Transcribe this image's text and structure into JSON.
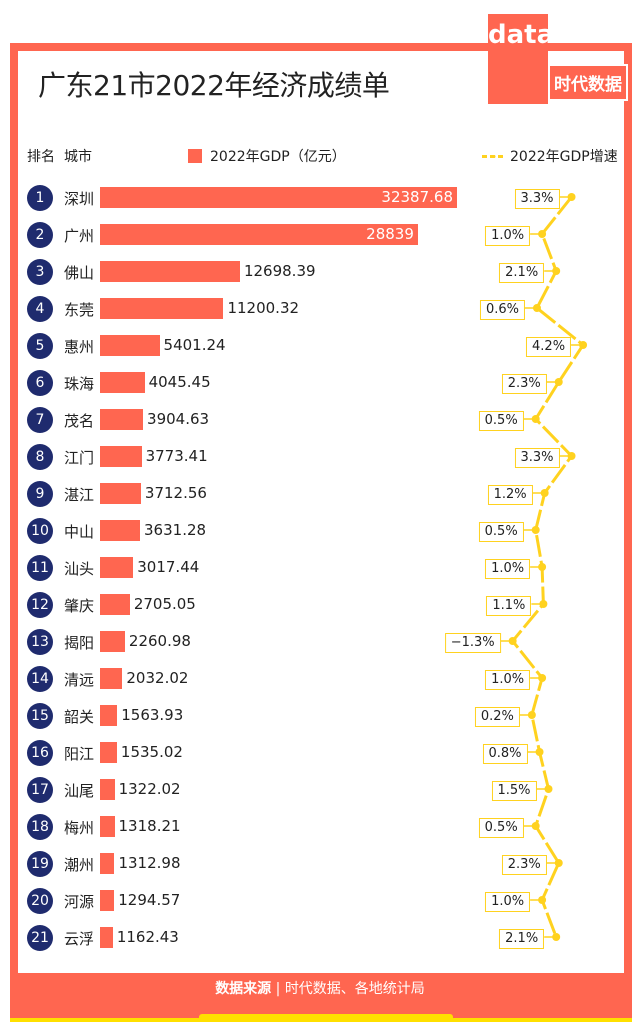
{
  "title": "广东21市2022年经济成绩单",
  "logo": {
    "word": "data",
    "cn": "时代数据"
  },
  "headers": {
    "rank": "排名",
    "city": "城市"
  },
  "footer": {
    "label": "数据来源",
    "sep": "|",
    "source": "时代数据、各地统计局"
  },
  "colors": {
    "bar": "#FF6650",
    "line": "#FFD21F",
    "rank": "#1F2B6E"
  },
  "chart_data": {
    "type": "bar",
    "title": "广东21市2022年经济成绩单",
    "legend": [
      "2022年GDP（亿元）",
      "2022年GDP增速"
    ],
    "categories": [
      "深圳",
      "广州",
      "佛山",
      "东莞",
      "惠州",
      "珠海",
      "茂名",
      "江门",
      "湛江",
      "中山",
      "汕头",
      "肇庆",
      "揭阳",
      "清远",
      "韶关",
      "阳江",
      "汕尾",
      "梅州",
      "潮州",
      "河源",
      "云浮"
    ],
    "ranks": [
      "1",
      "2",
      "3",
      "4",
      "5",
      "6",
      "7",
      "8",
      "9",
      "10",
      "11",
      "12",
      "13",
      "14",
      "15",
      "16",
      "17",
      "18",
      "19",
      "20",
      "21"
    ],
    "series": [
      {
        "name": "2022年GDP（亿元）",
        "type": "bar",
        "values": [
          32387.68,
          28839,
          12698.39,
          11200.32,
          5401.24,
          4045.45,
          3904.63,
          3773.41,
          3712.56,
          3631.28,
          3017.44,
          2705.05,
          2260.98,
          2032.02,
          1563.93,
          1535.02,
          1322.02,
          1318.21,
          1312.98,
          1294.57,
          1162.43
        ],
        "labels": [
          "32387.68",
          "28839",
          "12698.39",
          "11200.32",
          "5401.24",
          "4045.45",
          "3904.63",
          "3773.41",
          "3712.56",
          "3631.28",
          "3017.44",
          "2705.05",
          "2260.98",
          "2032.02",
          "1563.93",
          "1535.02",
          "1322.02",
          "1318.21",
          "1312.98",
          "1294.57",
          "1162.43"
        ]
      },
      {
        "name": "2022年GDP增速",
        "type": "line",
        "values": [
          3.3,
          1.0,
          2.1,
          0.6,
          4.2,
          2.3,
          0.5,
          3.3,
          1.2,
          0.5,
          1.0,
          1.1,
          -1.3,
          1.0,
          0.2,
          0.8,
          1.5,
          0.5,
          2.3,
          1.0,
          2.1
        ],
        "labels": [
          "3.3%",
          "1.0%",
          "2.1%",
          "0.6%",
          "4.2%",
          "2.3%",
          "0.5%",
          "3.3%",
          "1.2%",
          "0.5%",
          "1.0%",
          "1.1%",
          "−1.3%",
          "1.0%",
          "0.2%",
          "0.8%",
          "1.5%",
          "0.5%",
          "2.3%",
          "1.0%",
          "2.1%"
        ]
      }
    ]
  }
}
